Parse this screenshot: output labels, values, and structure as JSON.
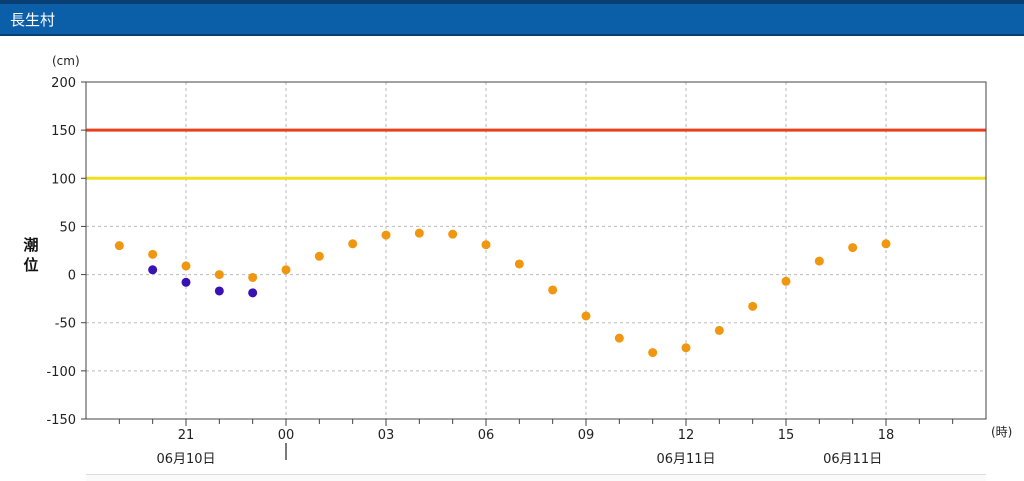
{
  "header": {
    "title": "長生村"
  },
  "chart_data": {
    "type": "scatter",
    "y_unit": "(cm)",
    "ylabel": "潮位",
    "x_unit": "(時)",
    "ylim": [
      -150,
      200
    ],
    "yticks": [
      200,
      150,
      100,
      50,
      0,
      -50,
      -100,
      -150
    ],
    "x_hours_from_1800": [
      0,
      27
    ],
    "xtick_labels": [
      "21",
      "00",
      "03",
      "06",
      "09",
      "12",
      "15",
      "18"
    ],
    "xtick_hours": [
      3,
      6,
      9,
      12,
      15,
      18,
      21,
      24
    ],
    "date_labels": [
      {
        "label": "06月10日",
        "hour": 3
      },
      {
        "label": "06月11日",
        "hour": 18
      },
      {
        "label": "06月11日",
        "hour": 23
      }
    ],
    "day_boundary_hour": 6,
    "threshold_lines": [
      {
        "value": 150,
        "color": "#e8401c"
      },
      {
        "value": 100,
        "color": "#f0e020"
      }
    ],
    "series": [
      {
        "color": "#f0960f",
        "points": [
          [
            1,
            30
          ],
          [
            2,
            21
          ],
          [
            3,
            9
          ],
          [
            4,
            0
          ],
          [
            5,
            -3
          ],
          [
            6,
            5
          ],
          [
            7,
            19
          ],
          [
            8,
            32
          ],
          [
            9,
            41
          ],
          [
            10,
            43
          ],
          [
            11,
            42
          ],
          [
            12,
            31
          ],
          [
            13,
            11
          ],
          [
            14,
            -16
          ],
          [
            15,
            -43
          ],
          [
            16,
            -66
          ],
          [
            17,
            -81
          ],
          [
            18,
            -76
          ],
          [
            19,
            -58
          ],
          [
            20,
            -33
          ],
          [
            21,
            -7
          ],
          [
            22,
            14
          ],
          [
            23,
            28
          ],
          [
            24,
            32
          ]
        ]
      },
      {
        "color": "#3a12b4",
        "points": [
          [
            2,
            5
          ],
          [
            3,
            -8
          ],
          [
            4,
            -17
          ],
          [
            5,
            -19
          ]
        ]
      }
    ]
  }
}
